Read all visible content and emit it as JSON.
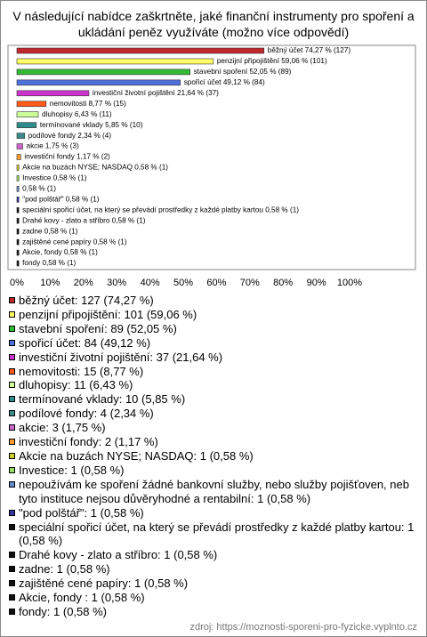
{
  "chart_data": {
    "type": "bar",
    "orientation": "horizontal",
    "title": "V následující nabídce zaškrtněte, jaké finanční instrumenty pro spoření a ukládání peněz využíváte (možno více odpovědí)",
    "values": [
      74.27,
      59.06,
      52.05,
      49.12,
      21.64,
      8.77,
      6.43,
      5.85,
      2.34,
      1.75,
      1.17,
      0.58,
      0.58,
      0.58,
      0.58,
      0.58,
      0.58,
      0.58,
      0.58,
      0.58,
      0.58
    ],
    "value_labels": [
      "běžný účet 74,27 % (127)",
      "penzijní připojištění 59,06 % (101)",
      "stavební spoření 52,05 % (89)",
      "spořicí účet 49,12 % (84)",
      "investiční životní pojištění 21,64 % (37)",
      "nemovitosti 8,77 % (15)",
      "dluhopisy 6,43 % (11)",
      "termínované vklady 5,85 % (10)",
      "podílové fondy 2,34 % (4)",
      "akcie 1,75 % (3)",
      "investiční fondy 1,17 % (2)",
      "Akcie na buzách NYSE; NASDAQ 0,58 % (1)",
      "Investice 0,58 % (1)",
      "0,58 % (1)",
      "\"pod polštář\" 0,58 % (1)",
      "speciální spořicí účet, na který se převádí prostředky z každé platby kartou 0,58 % (1)",
      "Drahé kovy - zlato a stříbro 0,58 % (1)",
      "zadne 0,58 % (1)",
      "zajištěné cené papíry 0,58 % (1)",
      "Akcie, fondy  0,58 % (1)",
      "fondy 0,58 % (1)"
    ],
    "legend": [
      "běžný účet: 127 (74,27 %)",
      "penzijní připojištění: 101 (59,06 %)",
      "stavební spoření: 89 (52,05 %)",
      "spořicí účet: 84 (49,12 %)",
      "investiční životní pojištění: 37 (21,64 %)",
      "nemovitosti: 15 (8,77 %)",
      "dluhopisy: 11 (6,43 %)",
      "termínované vklady: 10 (5,85 %)",
      "podílové fondy: 4 (2,34 %)",
      "akcie: 3 (1,75 %)",
      "investiční fondy: 2 (1,17 %)",
      "Akcie na buzách NYSE; NASDAQ: 1 (0,58 %)",
      "Investice: 1 (0,58 %)",
      "nepoužívám ke spoření žádné bankovní služby, nebo služby pojišťoven, neb tyto instituce nejsou důvěryhodné a rentabilní: 1 (0,58 %)",
      "\"pod polštář\": 1 (0,58 %)",
      "speciální spořicí účet, na který se převádí prostředky z každé platby kartou: 1 (0,58 %)",
      "Drahé kovy - zlato a stříbro: 1 (0,58 %)",
      "zadne: 1 (0,58 %)",
      "zajištěné cené papíry: 1 (0,58 %)",
      "Akcie, fondy : 1 (0,58 %)",
      "fondy: 1 (0,58 %)"
    ],
    "colors": [
      "#c0282d",
      "#ffff66",
      "#33bb33",
      "#4f6fd9",
      "#cc33cc",
      "#ff5a1a",
      "#ccff99",
      "#2e8b8b",
      "#3d8a8a",
      "#cc66cc",
      "#ff9933",
      "#cccc33",
      "#99dd66",
      "#6688cc",
      "#333399",
      "#111111",
      "#111111",
      "#111111",
      "#111111",
      "#111111",
      "#111111"
    ],
    "xlim": [
      0,
      100
    ],
    "xticks": [
      {
        "value": 0,
        "label": "0%"
      },
      {
        "value": 10,
        "label": "10%"
      },
      {
        "value": 20,
        "label": "20%"
      },
      {
        "value": 30,
        "label": "30%"
      },
      {
        "value": 40,
        "label": "40%"
      },
      {
        "value": 50,
        "label": "50%"
      },
      {
        "value": 60,
        "label": "60%"
      },
      {
        "value": 70,
        "label": "70%"
      },
      {
        "value": 80,
        "label": "80%"
      },
      {
        "value": 90,
        "label": "90%"
      },
      {
        "value": 100,
        "label": "100%"
      }
    ],
    "grid": false,
    "source": "zdroj: https://moznosti-sporeni-pro-fyzicke.vyplnto.cz"
  }
}
